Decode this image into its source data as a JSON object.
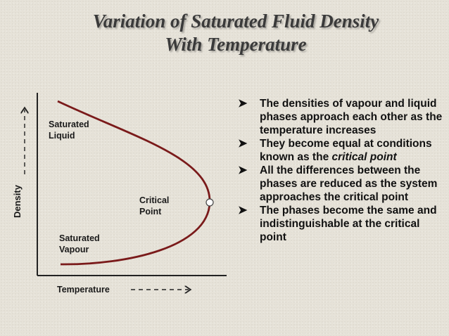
{
  "title": {
    "line1": "Variation of Saturated Fluid Density",
    "line2": "With Temperature"
  },
  "diagram": {
    "x_axis_label": "Temperature",
    "y_axis_label": "Density",
    "saturated_liquid": "Saturated Liquid",
    "saturated_vapour": "Saturated Vapour",
    "critical_point": "Critical Point",
    "curve_color": "#7a1a1a"
  },
  "bullets": [
    {
      "text": "The densities of vapour and liquid phases approach each other as the temperature increases"
    },
    {
      "text": "They become equal at conditions known as the ",
      "emph": "critical point"
    },
    {
      "text": "All the differences between the phases are reduced as the system approaches the critical point"
    },
    {
      "text": "The phases become the same and indistinguishable at the critical point"
    }
  ]
}
